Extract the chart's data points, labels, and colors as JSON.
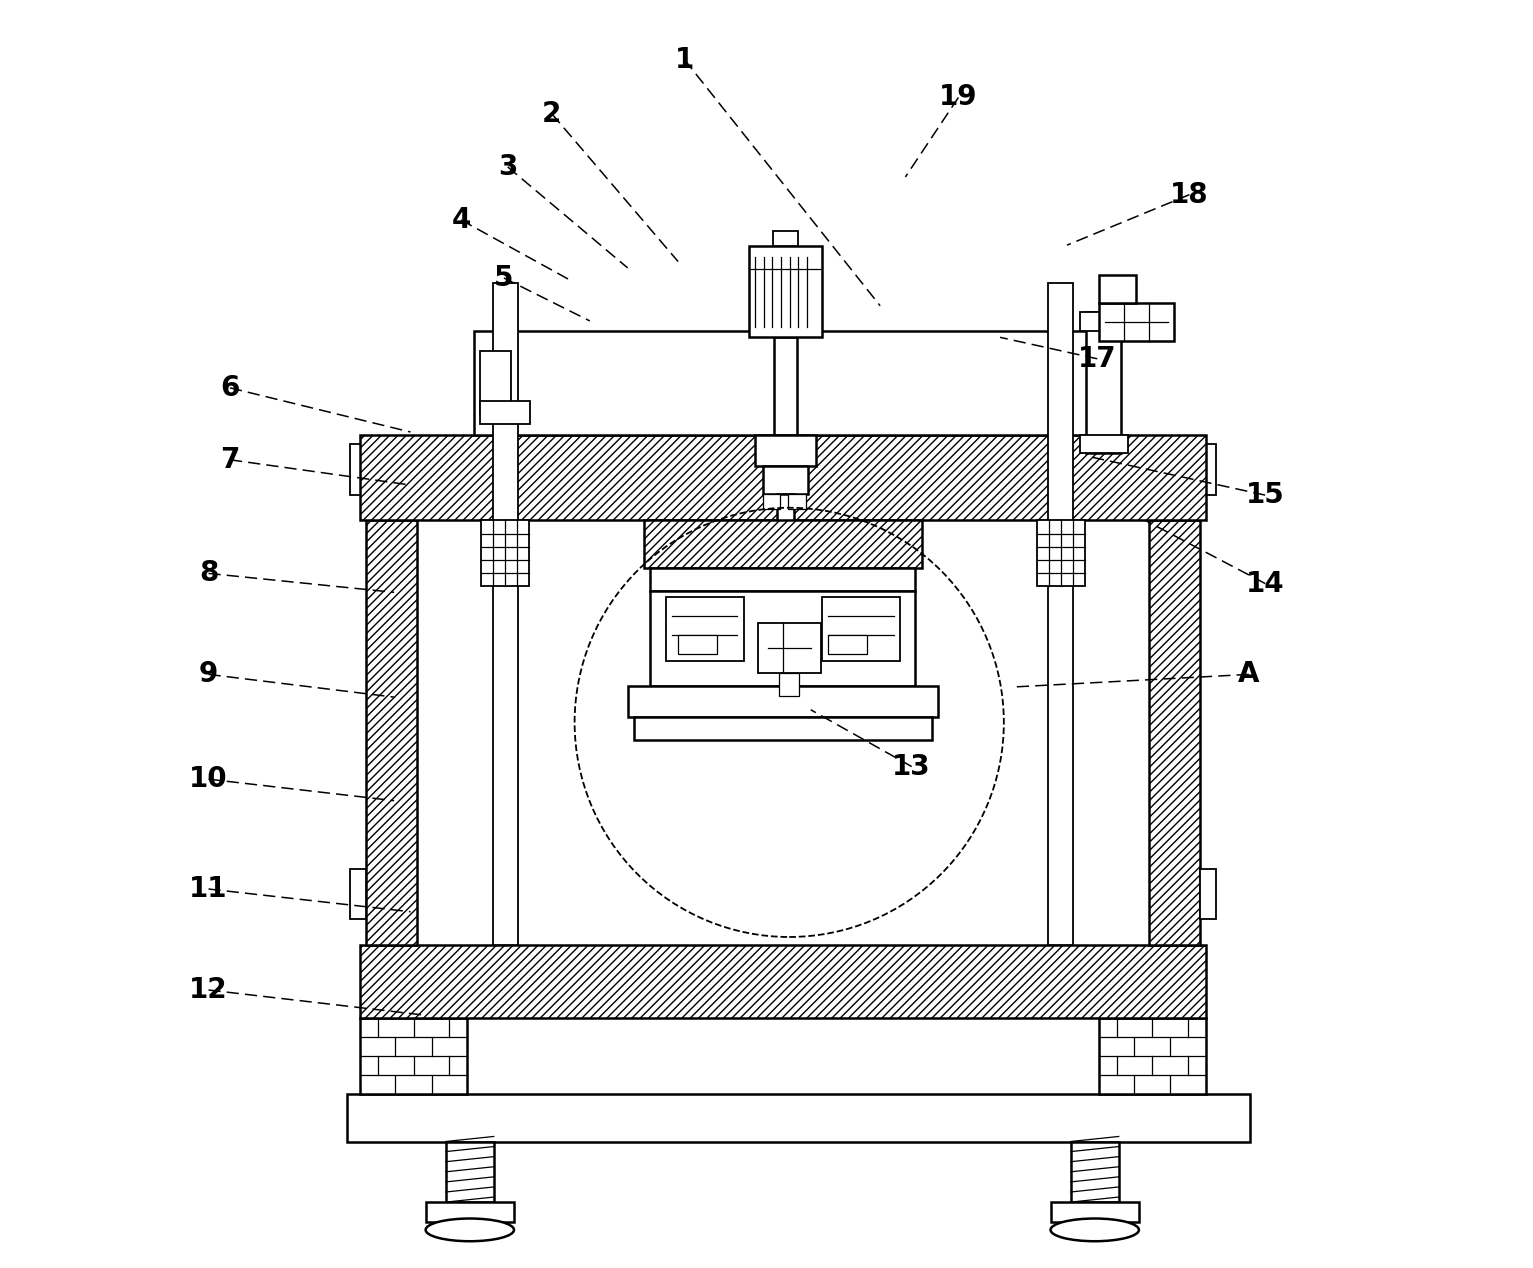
{
  "bg_color": "#ffffff",
  "line_color": "#000000",
  "fig_width": 15.33,
  "fig_height": 12.68,
  "dpi": 100,
  "label_fontsize": 20,
  "leaders": {
    "1": {
      "lpos": [
        0.435,
        0.955
      ],
      "tpos": [
        0.59,
        0.76
      ]
    },
    "2": {
      "lpos": [
        0.33,
        0.912
      ],
      "tpos": [
        0.43,
        0.795
      ]
    },
    "3": {
      "lpos": [
        0.295,
        0.87
      ],
      "tpos": [
        0.39,
        0.79
      ]
    },
    "4": {
      "lpos": [
        0.258,
        0.828
      ],
      "tpos": [
        0.345,
        0.78
      ]
    },
    "5": {
      "lpos": [
        0.292,
        0.782
      ],
      "tpos": [
        0.36,
        0.748
      ]
    },
    "6": {
      "lpos": [
        0.075,
        0.695
      ],
      "tpos": [
        0.218,
        0.66
      ]
    },
    "7": {
      "lpos": [
        0.075,
        0.638
      ],
      "tpos": [
        0.218,
        0.618
      ]
    },
    "8": {
      "lpos": [
        0.058,
        0.548
      ],
      "tpos": [
        0.205,
        0.533
      ]
    },
    "9": {
      "lpos": [
        0.058,
        0.468
      ],
      "tpos": [
        0.205,
        0.45
      ]
    },
    "10": {
      "lpos": [
        0.058,
        0.385
      ],
      "tpos": [
        0.205,
        0.368
      ]
    },
    "11": {
      "lpos": [
        0.058,
        0.298
      ],
      "tpos": [
        0.218,
        0.28
      ]
    },
    "12": {
      "lpos": [
        0.058,
        0.218
      ],
      "tpos": [
        0.23,
        0.198
      ]
    },
    "13": {
      "lpos": [
        0.615,
        0.395
      ],
      "tpos": [
        0.535,
        0.44
      ]
    },
    "14": {
      "lpos": [
        0.895,
        0.54
      ],
      "tpos": [
        0.8,
        0.59
      ]
    },
    "15": {
      "lpos": [
        0.895,
        0.61
      ],
      "tpos": [
        0.758,
        0.64
      ]
    },
    "17": {
      "lpos": [
        0.762,
        0.718
      ],
      "tpos": [
        0.685,
        0.735
      ]
    },
    "18": {
      "lpos": [
        0.835,
        0.848
      ],
      "tpos": [
        0.738,
        0.808
      ]
    },
    "19": {
      "lpos": [
        0.652,
        0.925
      ],
      "tpos": [
        0.61,
        0.862
      ]
    },
    "A": {
      "lpos": [
        0.882,
        0.468
      ],
      "tpos": [
        0.695,
        0.458
      ]
    }
  }
}
